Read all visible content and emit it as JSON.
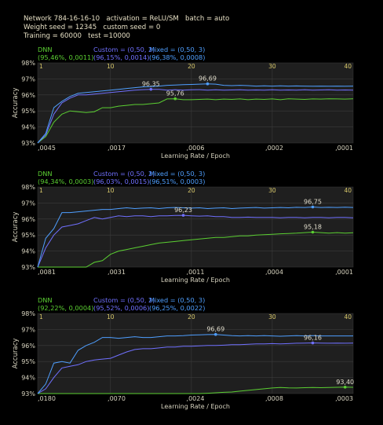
{
  "header": {
    "line1": "Network 784-16-16-10   activation = ReLU/SM   batch = auto",
    "line2": "Weight seed = 12345   custom seed = 0",
    "line3": "Training = 60000   test =10000"
  },
  "colors": {
    "dnn": "#5bcf32",
    "custom": "#7070ff",
    "mixed": "#4f9fff",
    "plot_bg": "#1f1f1f"
  },
  "chart_data": [
    {
      "type": "line",
      "xlabel": "Learning Rate  /  Epoch",
      "ylabel": "Accuracy",
      "ylim": [
        93,
        98
      ],
      "xlim": [
        1,
        40
      ],
      "ytick_labels": [
        "98%",
        "97%",
        "96%",
        "95%",
        "94%",
        "93%"
      ],
      "epoch_ticks": [
        "1",
        "10",
        "20",
        "30",
        "40"
      ],
      "lr_ticks": [
        ",0045",
        ",0017",
        ",0006",
        ",0002",
        ",0001"
      ],
      "legend": {
        "dnn": "DNN",
        "dnn_val": "(95,46%, 0,0011)",
        "custom": "Custom = (0,50, 2)",
        "custom_val": "(96,15%, 0,0014)",
        "mixed": "Mixed = (0,50, 3)",
        "mixed_val": "(96,38%, 0,0008)"
      },
      "series": [
        {
          "name": "DNN",
          "color": "#5bcf32",
          "values": [
            93.0,
            93.4,
            94.3,
            94.8,
            95.0,
            94.95,
            94.9,
            94.95,
            95.2,
            95.2,
            95.3,
            95.35,
            95.4,
            95.4,
            95.45,
            95.5,
            95.75,
            95.76,
            95.7,
            95.7,
            95.72,
            95.74,
            95.7,
            95.74,
            95.72,
            95.75,
            95.7,
            95.74,
            95.72,
            95.75,
            95.7,
            95.76,
            95.74,
            95.72,
            95.75,
            95.74,
            95.76,
            95.75,
            95.74,
            95.76
          ],
          "peak_epoch": 18,
          "peak_label": "95,76"
        },
        {
          "name": "Custom",
          "color": "#7070ff",
          "values": [
            93.0,
            93.5,
            94.8,
            95.5,
            95.8,
            96.0,
            96.0,
            96.05,
            96.1,
            96.15,
            96.2,
            96.25,
            96.3,
            96.33,
            96.35,
            96.35,
            96.3,
            96.32,
            96.3,
            96.32,
            96.33,
            96.3,
            96.32,
            96.3,
            96.31,
            96.32,
            96.3,
            96.31,
            96.3,
            96.32,
            96.3,
            96.31,
            96.3,
            96.32,
            96.3,
            96.31,
            96.32,
            96.3,
            96.31,
            96.3
          ],
          "peak_epoch": 15,
          "peak_label": "96,35"
        },
        {
          "name": "Mixed",
          "color": "#4f9fff",
          "values": [
            93.0,
            93.6,
            95.2,
            95.6,
            95.9,
            96.1,
            96.15,
            96.2,
            96.25,
            96.3,
            96.35,
            96.4,
            96.45,
            96.5,
            96.52,
            96.55,
            96.6,
            96.62,
            96.64,
            96.65,
            96.67,
            96.69,
            96.67,
            96.6,
            96.58,
            96.6,
            96.58,
            96.55,
            96.57,
            96.55,
            96.57,
            96.55,
            96.56,
            96.55,
            96.54,
            96.55,
            96.54,
            96.55,
            96.54,
            96.55
          ],
          "peak_epoch": 22,
          "peak_label": "96,69"
        }
      ]
    },
    {
      "type": "line",
      "xlabel": "Learning Rate  /  Epoch",
      "ylabel": "Accuracy",
      "ylim": [
        93,
        98
      ],
      "xlim": [
        1,
        40
      ],
      "ytick_labels": [
        "98%",
        "97%",
        "96%",
        "95%",
        "94%",
        "93%"
      ],
      "epoch_ticks": [
        "1",
        "10",
        "20",
        "30",
        "40"
      ],
      "lr_ticks": [
        ",0081",
        ",0031",
        ",0011",
        ",0004",
        ",0001"
      ],
      "legend": {
        "dnn": "DNN",
        "dnn_val": "(94,34%, 0,0003)",
        "custom": "Custom = (0,50, 2)",
        "custom_val": "(96,03%, 0,0015)",
        "mixed": "Mixed = (0,50, 3)",
        "mixed_val": "(96,51%, 0,0003)"
      },
      "series": [
        {
          "name": "DNN",
          "color": "#5bcf32",
          "values": [
            93.0,
            93.0,
            93.0,
            93.0,
            93.0,
            93.0,
            93.0,
            93.3,
            93.4,
            93.8,
            94.0,
            94.1,
            94.2,
            94.3,
            94.4,
            94.5,
            94.55,
            94.6,
            94.65,
            94.7,
            94.75,
            94.8,
            94.85,
            94.85,
            94.9,
            94.95,
            94.95,
            95.0,
            95.02,
            95.05,
            95.08,
            95.1,
            95.12,
            95.15,
            95.18,
            95.15,
            95.12,
            95.15,
            95.12,
            95.14
          ],
          "peak_epoch": 35,
          "peak_label": "95,18"
        },
        {
          "name": "Custom",
          "color": "#7070ff",
          "values": [
            93.0,
            94.2,
            95.0,
            95.5,
            95.6,
            95.7,
            95.9,
            96.1,
            96.0,
            96.1,
            96.2,
            96.15,
            96.2,
            96.2,
            96.15,
            96.2,
            96.2,
            96.22,
            96.23,
            96.2,
            96.18,
            96.2,
            96.15,
            96.15,
            96.1,
            96.1,
            96.12,
            96.1,
            96.1,
            96.1,
            96.08,
            96.1,
            96.1,
            96.08,
            96.1,
            96.1,
            96.08,
            96.1,
            96.1,
            96.08
          ],
          "peak_epoch": 19,
          "peak_label": "96,23"
        },
        {
          "name": "Mixed",
          "color": "#4f9fff",
          "values": [
            93.0,
            94.8,
            95.4,
            96.4,
            96.4,
            96.45,
            96.5,
            96.55,
            96.6,
            96.6,
            96.65,
            96.7,
            96.65,
            96.68,
            96.7,
            96.65,
            96.7,
            96.72,
            96.7,
            96.68,
            96.7,
            96.65,
            96.68,
            96.7,
            96.65,
            96.68,
            96.7,
            96.72,
            96.68,
            96.7,
            96.72,
            96.7,
            96.73,
            96.72,
            96.75,
            96.72,
            96.73,
            96.72,
            96.74,
            96.72
          ],
          "peak_epoch": 35,
          "peak_label": "96,75"
        }
      ]
    },
    {
      "type": "line",
      "xlabel": "Learning Rate  /  Epoch",
      "ylabel": "Accuracy",
      "ylim": [
        93,
        98
      ],
      "xlim": [
        1,
        40
      ],
      "ytick_labels": [
        "98%",
        "97%",
        "96%",
        "95%",
        "94%",
        "93%"
      ],
      "epoch_ticks": [
        "1",
        "10",
        "20",
        "30",
        "40"
      ],
      "lr_ticks": [
        ",0180",
        ",0070",
        ",0024",
        ",0008",
        ",0003"
      ],
      "legend": {
        "dnn": "DNN",
        "dnn_val": "(92,22%, 0,0004)",
        "custom": "Custom = (0,50, 2)",
        "custom_val": "(95,52%, 0,0006)",
        "mixed": "Mixed = (0,50, 3)",
        "mixed_val": "(96,25%, 0,0022)"
      },
      "series": [
        {
          "name": "DNN",
          "color": "#5bcf32",
          "values": [
            93.0,
            93.0,
            93.0,
            93.0,
            93.0,
            93.0,
            93.0,
            93.0,
            93.0,
            93.0,
            93.0,
            93.0,
            93.0,
            93.0,
            93.0,
            93.0,
            93.0,
            93.0,
            93.0,
            93.0,
            93.0,
            93.02,
            93.05,
            93.08,
            93.1,
            93.15,
            93.2,
            93.25,
            93.3,
            93.35,
            93.38,
            93.36,
            93.35,
            93.37,
            93.38,
            93.37,
            93.38,
            93.39,
            93.4,
            93.39
          ],
          "peak_epoch": 39,
          "peak_label": "93,40"
        },
        {
          "name": "Custom",
          "color": "#7070ff",
          "values": [
            93.0,
            93.3,
            94.0,
            94.6,
            94.7,
            94.8,
            95.0,
            95.1,
            95.15,
            95.2,
            95.4,
            95.6,
            95.75,
            95.8,
            95.8,
            95.85,
            95.9,
            95.9,
            95.95,
            95.95,
            95.98,
            96.0,
            96.0,
            96.02,
            96.05,
            96.05,
            96.08,
            96.1,
            96.1,
            96.12,
            96.1,
            96.12,
            96.14,
            96.15,
            96.16,
            96.15,
            96.14,
            96.15,
            96.14,
            96.15
          ],
          "peak_epoch": 35,
          "peak_label": "96,16"
        },
        {
          "name": "Mixed",
          "color": "#4f9fff",
          "values": [
            93.0,
            93.6,
            94.9,
            95.0,
            94.9,
            95.7,
            96.0,
            96.2,
            96.5,
            96.5,
            96.45,
            96.5,
            96.55,
            96.5,
            96.5,
            96.55,
            96.6,
            96.6,
            96.62,
            96.65,
            96.66,
            96.68,
            96.69,
            96.65,
            96.62,
            96.6,
            96.62,
            96.6,
            96.62,
            96.6,
            96.58,
            96.6,
            96.62,
            96.6,
            96.62,
            96.6,
            96.6,
            96.6,
            96.6,
            96.6
          ],
          "peak_epoch": 23,
          "peak_label": "96,69"
        }
      ]
    }
  ]
}
